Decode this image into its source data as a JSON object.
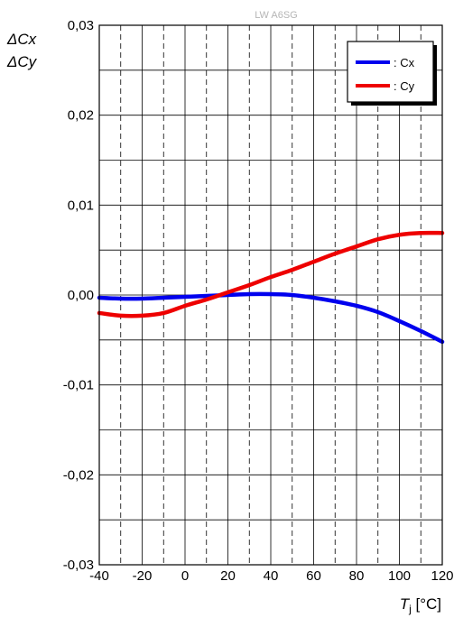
{
  "chart_data": {
    "type": "line",
    "watermark": "LW A6SG",
    "ylabel_lines": [
      "ΔCx",
      "ΔCy"
    ],
    "xlabel_symbol": "T",
    "xlabel_subscript": "j",
    "xlabel_unit": " [°C]",
    "xlim": [
      -40,
      120
    ],
    "ylim": [
      -0.03,
      0.03
    ],
    "x_ticks": [
      -40,
      -20,
      0,
      20,
      40,
      60,
      80,
      100,
      120
    ],
    "x_tick_labels": [
      "-40",
      "-20",
      "0",
      "20",
      "40",
      "60",
      "80",
      "100",
      "120"
    ],
    "y_ticks": [
      -0.03,
      -0.02,
      -0.01,
      0.0,
      0.01,
      0.02,
      0.03
    ],
    "y_tick_labels": [
      "-0,03",
      "-0,02",
      "-0,01",
      "0,00",
      "0,01",
      "0,02",
      "0,03"
    ],
    "grid": true,
    "legend_position": "top-right",
    "series": [
      {
        "name": ": Cx",
        "color": "#0000ee",
        "x": [
          -40,
          -30,
          -20,
          -10,
          0,
          10,
          20,
          30,
          40,
          50,
          60,
          70,
          80,
          90,
          100,
          110,
          120
        ],
        "y": [
          -0.0003,
          -0.0004,
          -0.0004,
          -0.0003,
          -0.0002,
          -0.0001,
          0.0,
          0.0001,
          0.0001,
          0.0,
          -0.0003,
          -0.0007,
          -0.0012,
          -0.0019,
          -0.0029,
          -0.004,
          -0.0052
        ]
      },
      {
        "name": ": Cy",
        "color": "#ee0000",
        "x": [
          -40,
          -30,
          -20,
          -10,
          0,
          10,
          20,
          30,
          40,
          50,
          60,
          70,
          80,
          90,
          100,
          110,
          120
        ],
        "y": [
          -0.002,
          -0.0023,
          -0.0023,
          -0.002,
          -0.0012,
          -0.0005,
          0.0003,
          0.0011,
          0.002,
          0.0028,
          0.0037,
          0.0046,
          0.0054,
          0.0062,
          0.0067,
          0.0069,
          0.0069
        ]
      }
    ]
  }
}
